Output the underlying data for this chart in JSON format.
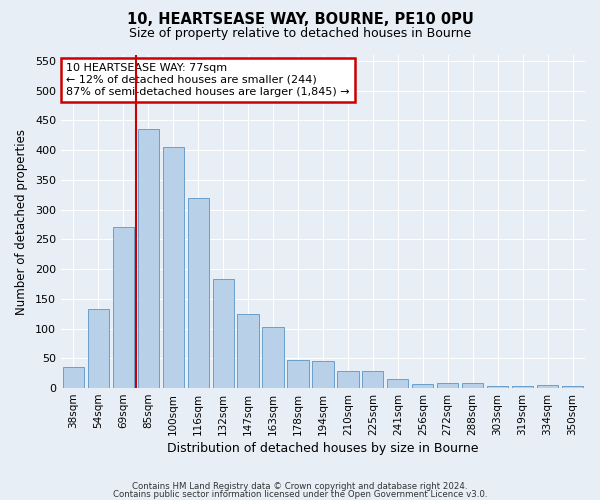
{
  "title1": "10, HEARTSEASE WAY, BOURNE, PE10 0PU",
  "title2": "Size of property relative to detached houses in Bourne",
  "xlabel": "Distribution of detached houses by size in Bourne",
  "ylabel": "Number of detached properties",
  "categories": [
    "38sqm",
    "54sqm",
    "69sqm",
    "85sqm",
    "100sqm",
    "116sqm",
    "132sqm",
    "147sqm",
    "163sqm",
    "178sqm",
    "194sqm",
    "210sqm",
    "225sqm",
    "241sqm",
    "256sqm",
    "272sqm",
    "288sqm",
    "303sqm",
    "319sqm",
    "334sqm",
    "350sqm"
  ],
  "values": [
    35,
    133,
    270,
    435,
    405,
    320,
    183,
    125,
    103,
    47,
    45,
    29,
    28,
    15,
    7,
    9,
    9,
    4,
    4,
    5,
    4
  ],
  "bar_color": "#b8d0e8",
  "bar_edge_color": "#6aa0cc",
  "vline_color": "#cc0000",
  "annotation_text": "10 HEARTSEASE WAY: 77sqm\n← 12% of detached houses are smaller (244)\n87% of semi-detached houses are larger (1,845) →",
  "annotation_box_color": "#ffffff",
  "annotation_box_edge": "#cc0000",
  "ylim": [
    0,
    560
  ],
  "yticks": [
    0,
    50,
    100,
    150,
    200,
    250,
    300,
    350,
    400,
    450,
    500,
    550
  ],
  "footer1": "Contains HM Land Registry data © Crown copyright and database right 2024.",
  "footer2": "Contains public sector information licensed under the Open Government Licence v3.0.",
  "bg_color": "#e8eef5",
  "plot_bg_color": "#e8eef5",
  "grid_color": "#ffffff"
}
